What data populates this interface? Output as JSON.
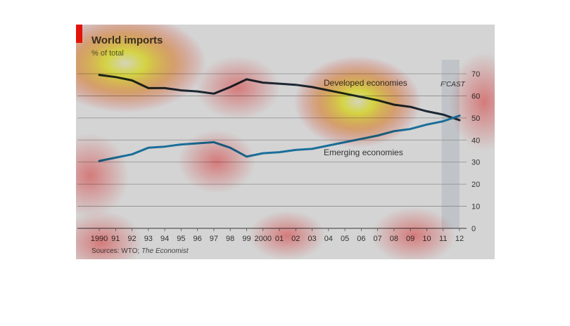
{
  "chart_data": {
    "type": "line",
    "title": "World imports",
    "subtitle": "% of total",
    "x": [
      "1990",
      "91",
      "92",
      "93",
      "94",
      "95",
      "96",
      "97",
      "98",
      "99",
      "2000",
      "01",
      "02",
      "03",
      "04",
      "05",
      "06",
      "07",
      "08",
      "09",
      "10",
      "11",
      "12"
    ],
    "series": [
      {
        "name": "Developed economies",
        "color": "#1c2833",
        "values": [
          69.5,
          68.5,
          67,
          63.5,
          63.5,
          62.5,
          62,
          61,
          64,
          67.5,
          66,
          65.5,
          65,
          64,
          62.5,
          61,
          59.5,
          58,
          56,
          55,
          53,
          51.5,
          49
        ]
      },
      {
        "name": "Emerging economies",
        "color": "#1a6e99",
        "values": [
          30.5,
          32,
          33.5,
          36.5,
          37,
          38,
          38.5,
          39,
          36.5,
          32.5,
          34,
          34.5,
          35.5,
          36,
          37.5,
          39,
          40.5,
          42,
          44,
          45,
          47,
          48.5,
          51
        ]
      }
    ],
    "y_ticks": [
      "0",
      "10",
      "20",
      "30",
      "40",
      "50",
      "60",
      "70"
    ],
    "ylim": [
      0,
      70
    ],
    "y_axis_side": "right",
    "grid": true,
    "forecast_label": "F'CAST",
    "forecast_region": [
      "11",
      "12"
    ],
    "source_prefix": "Sources: WTO; ",
    "source_italic": "The Economist",
    "heatmap_overlay": true
  }
}
